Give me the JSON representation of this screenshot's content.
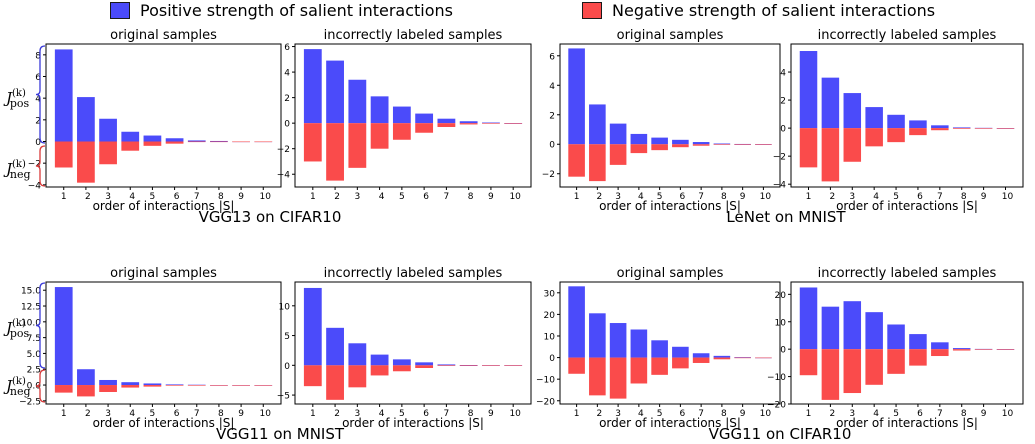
{
  "legend": {
    "positive_label": "Positive strength of salient interactions",
    "negative_label": "Negative strength of salient interactions",
    "positive_color": "#4b4bfa",
    "negative_color": "#fa4b4b"
  },
  "bracket_labels": {
    "pos_main": "J",
    "pos_sub": "pos",
    "neg_main": "J",
    "neg_sub": "neg",
    "sup": "(k)"
  },
  "group_titles": [
    "VGG13 on CIFAR10",
    "LeNet on MNIST",
    "VGG11 on MNIST",
    "VGG11 on CIFAR10"
  ],
  "axis_label_x": "order of interactions |S|",
  "chart_data": [
    {
      "type": "bar",
      "title": "original samples",
      "group": "VGG13 on CIFAR10",
      "categories": [
        "1",
        "2",
        "3",
        "4",
        "5",
        "6",
        "7",
        "8",
        "9",
        "10"
      ],
      "series": [
        {
          "name": "Positive strength of salient interactions",
          "values": [
            8.5,
            4.1,
            2.1,
            0.9,
            0.55,
            0.3,
            0.1,
            0.05,
            0,
            0
          ]
        },
        {
          "name": "Negative strength of salient interactions",
          "values": [
            -2.4,
            -3.8,
            -2.1,
            -0.85,
            -0.4,
            -0.2,
            -0.05,
            -0.02,
            0,
            0
          ]
        }
      ],
      "yticks": [
        -4,
        -2,
        0,
        2,
        4,
        6,
        8
      ],
      "ylim": [
        -4.2,
        9.0
      ],
      "xlabel": "order of interactions |S|"
    },
    {
      "type": "bar",
      "title": "incorrectly labeled samples",
      "group": "VGG13 on CIFAR10",
      "categories": [
        "1",
        "2",
        "3",
        "4",
        "5",
        "6",
        "7",
        "8",
        "9",
        "10"
      ],
      "series": [
        {
          "name": "Positive strength of salient interactions",
          "values": [
            5.8,
            4.9,
            3.4,
            2.1,
            1.3,
            0.75,
            0.35,
            0.15,
            0.05,
            0
          ]
        },
        {
          "name": "Negative strength of salient interactions",
          "values": [
            -3.0,
            -4.5,
            -3.5,
            -2.0,
            -1.3,
            -0.75,
            -0.3,
            -0.1,
            -0.03,
            0
          ]
        }
      ],
      "yticks": [
        -4,
        -2,
        0,
        2,
        4,
        6
      ],
      "ylim": [
        -5.0,
        6.2
      ],
      "xlabel": ""
    },
    {
      "type": "bar",
      "title": "original samples",
      "group": "LeNet on MNIST",
      "categories": [
        "1",
        "2",
        "3",
        "4",
        "5",
        "6",
        "7",
        "8",
        "9",
        "10"
      ],
      "series": [
        {
          "name": "Positive strength of salient interactions",
          "values": [
            6.5,
            2.7,
            1.4,
            0.7,
            0.45,
            0.3,
            0.15,
            0.05,
            0.02,
            0
          ]
        },
        {
          "name": "Negative strength of salient interactions",
          "values": [
            -2.2,
            -2.5,
            -1.4,
            -0.6,
            -0.4,
            -0.2,
            -0.1,
            -0.03,
            0,
            0
          ]
        }
      ],
      "yticks": [
        -2,
        0,
        2,
        4,
        6
      ],
      "ylim": [
        -2.9,
        6.8
      ],
      "xlabel": "order of interactions |S|"
    },
    {
      "type": "bar",
      "title": "incorrectly labeled samples",
      "group": "LeNet on MNIST",
      "categories": [
        "1",
        "2",
        "3",
        "4",
        "5",
        "6",
        "7",
        "8",
        "9",
        "10"
      ],
      "series": [
        {
          "name": "Positive strength of salient interactions",
          "values": [
            5.5,
            3.6,
            2.5,
            1.5,
            0.95,
            0.55,
            0.2,
            0.05,
            0.02,
            0
          ]
        },
        {
          "name": "Negative strength of salient interactions",
          "values": [
            -2.8,
            -3.8,
            -2.4,
            -1.3,
            -1.0,
            -0.5,
            -0.15,
            -0.05,
            0,
            0
          ]
        }
      ],
      "yticks": [
        -4,
        -2,
        0,
        2,
        4
      ],
      "ylim": [
        -4.2,
        6.0
      ],
      "xlabel": "order of interactions |S|"
    },
    {
      "type": "bar",
      "title": "original samples",
      "group": "VGG11 on MNIST",
      "categories": [
        "1",
        "2",
        "3",
        "4",
        "5",
        "6",
        "7",
        "8",
        "9",
        "10"
      ],
      "series": [
        {
          "name": "Positive strength of salient interactions",
          "values": [
            15.5,
            2.5,
            0.8,
            0.45,
            0.25,
            0.1,
            0.05,
            0,
            0,
            0
          ]
        },
        {
          "name": "Negative strength of salient interactions",
          "values": [
            -1.2,
            -1.8,
            -1.1,
            -0.4,
            -0.25,
            -0.1,
            -0.05,
            0,
            0,
            0
          ]
        }
      ],
      "yticks": [
        -2.5,
        0.0,
        2.5,
        5.0,
        7.5,
        10.0,
        12.5,
        15.0
      ],
      "ytick_labels": [
        "−2.5",
        "0.0",
        "2.5",
        "5.0",
        "7.5",
        "10.0",
        "12.5",
        "15.0"
      ],
      "ylim": [
        -3.0,
        16.3
      ],
      "xlabel": "order of interactions |S|"
    },
    {
      "type": "bar",
      "title": "incorrectly labeled samples",
      "group": "VGG11 on MNIST",
      "categories": [
        "1",
        "2",
        "3",
        "4",
        "5",
        "6",
        "7",
        "8",
        "9",
        "10"
      ],
      "series": [
        {
          "name": "Positive strength of salient interactions",
          "values": [
            13.0,
            6.3,
            3.7,
            1.8,
            1.0,
            0.5,
            0.15,
            0.05,
            0,
            0
          ]
        },
        {
          "name": "Negative strength of salient interactions",
          "values": [
            -3.5,
            -5.8,
            -3.7,
            -1.7,
            -1.0,
            -0.45,
            -0.1,
            -0.05,
            0,
            0
          ]
        }
      ],
      "yticks": [
        -5,
        0,
        5,
        10
      ],
      "ylim": [
        -6.5,
        14.0
      ],
      "xlabel": "order of interactions |S|"
    },
    {
      "type": "bar",
      "title": "original samples",
      "group": "VGG11 on CIFAR10",
      "categories": [
        "1",
        "2",
        "3",
        "4",
        "5",
        "6",
        "7",
        "8",
        "9",
        "10"
      ],
      "series": [
        {
          "name": "Positive strength of salient interactions",
          "values": [
            33,
            20.5,
            16,
            13,
            8,
            5,
            2,
            0.8,
            0.2,
            0
          ]
        },
        {
          "name": "Negative strength of salient interactions",
          "values": [
            -7.5,
            -17.5,
            -19,
            -12,
            -8,
            -5,
            -2.5,
            -0.8,
            -0.2,
            0
          ]
        }
      ],
      "yticks": [
        -20,
        -10,
        0,
        10,
        20,
        30
      ],
      "ylim": [
        -21.5,
        35.0
      ],
      "xlabel": "order of interactions |S|"
    },
    {
      "type": "bar",
      "title": "incorrectly labeled samples",
      "group": "VGG11 on CIFAR10",
      "categories": [
        "1",
        "2",
        "3",
        "4",
        "5",
        "6",
        "7",
        "8",
        "9",
        "10"
      ],
      "series": [
        {
          "name": "Positive strength of salient interactions",
          "values": [
            22.5,
            15.5,
            17.5,
            13.5,
            9,
            5.5,
            2.5,
            0.4,
            0.1,
            0
          ]
        },
        {
          "name": "Negative strength of salient interactions",
          "values": [
            -9.5,
            -18.5,
            -16,
            -13,
            -9,
            -6,
            -2.5,
            -0.5,
            -0.1,
            0
          ]
        }
      ],
      "yticks": [
        -20,
        -10,
        0,
        10,
        20
      ],
      "ylim": [
        -20.0,
        24.5
      ],
      "xlabel": "order of interactions |S|"
    }
  ]
}
